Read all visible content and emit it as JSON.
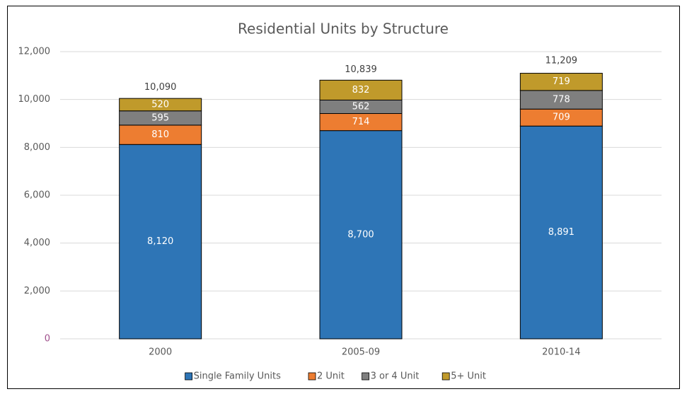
{
  "chart_data": {
    "type": "stacked_bar",
    "title": "Residential Units by Structure",
    "categories": [
      "2000",
      "2005-09",
      "2010-14"
    ],
    "series": [
      {
        "name": "Single Family Units",
        "color": "#2e75b6",
        "values": [
          8120,
          8700,
          8891
        ],
        "value_labels": [
          "8,120",
          "8,700",
          "8,891"
        ]
      },
      {
        "name": "2 Unit",
        "color": "#ed7d31",
        "values": [
          810,
          714,
          709
        ]
      },
      {
        "name": "3 or 4 Unit",
        "color": "#7f7f7f",
        "values": [
          595,
          562,
          778
        ]
      },
      {
        "name": "5+ Unit",
        "color": "#c09a2b",
        "values": [
          520,
          832,
          719
        ]
      }
    ],
    "totals": [
      10090,
      10839,
      11209
    ],
    "totals_labels": [
      "10,090",
      "10,839",
      "11,209"
    ],
    "ylim": [
      0,
      12000
    ],
    "yticks": [
      0,
      {
        "value": 2000,
        "label": "2,000"
      },
      {
        "value": 4000,
        "label": "4,000"
      },
      {
        "value": 6000,
        "label": "6,000"
      },
      {
        "value": 8000,
        "label": "8,000"
      },
      {
        "value": 10000,
        "label": "10,000"
      },
      {
        "value": 12000,
        "label": "12,000"
      }
    ],
    "grid": true,
    "legend": "bottom"
  }
}
